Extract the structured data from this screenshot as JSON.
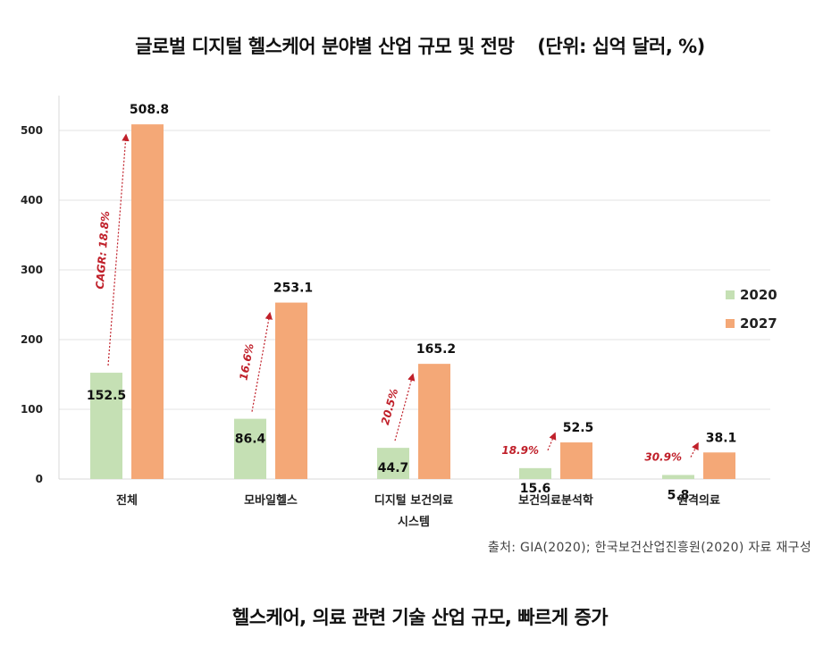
{
  "header": {
    "title": "글로벌 디지털 헬스케어 분야별 산업 규모 및 전망",
    "unit": "(단위: 십억 달러, %)"
  },
  "footer": {
    "source": "출처: GIA(2020); 한국보건산업진흥원(2020) 자료 재구성",
    "caption": "헬스케어, 의료 관련 기술 산업 규모, 빠르게 증가"
  },
  "chart_data": {
    "type": "bar",
    "categories": [
      [
        "전체"
      ],
      [
        "모바일헬스"
      ],
      [
        "디지털 보건의료",
        "시스템"
      ],
      [
        "보건의료분석학"
      ],
      [
        "원격의료"
      ]
    ],
    "series": [
      {
        "name": "2020",
        "values": [
          152.5,
          86.4,
          44.7,
          15.6,
          5.8
        ],
        "color": "#c5e0b4"
      },
      {
        "name": "2027",
        "values": [
          508.8,
          253.1,
          165.2,
          52.5,
          38.1
        ],
        "color": "#f4a877"
      }
    ],
    "growth_labels": [
      "CAGR: 18.8%",
      "16.6%",
      "20.5%",
      "18.9%",
      "30.9%"
    ],
    "growth_color": "#c0202a",
    "ylim": [
      0,
      550
    ],
    "yticks": [
      0,
      100,
      200,
      300,
      400,
      500
    ],
    "grid": true,
    "legend_position": "right"
  }
}
